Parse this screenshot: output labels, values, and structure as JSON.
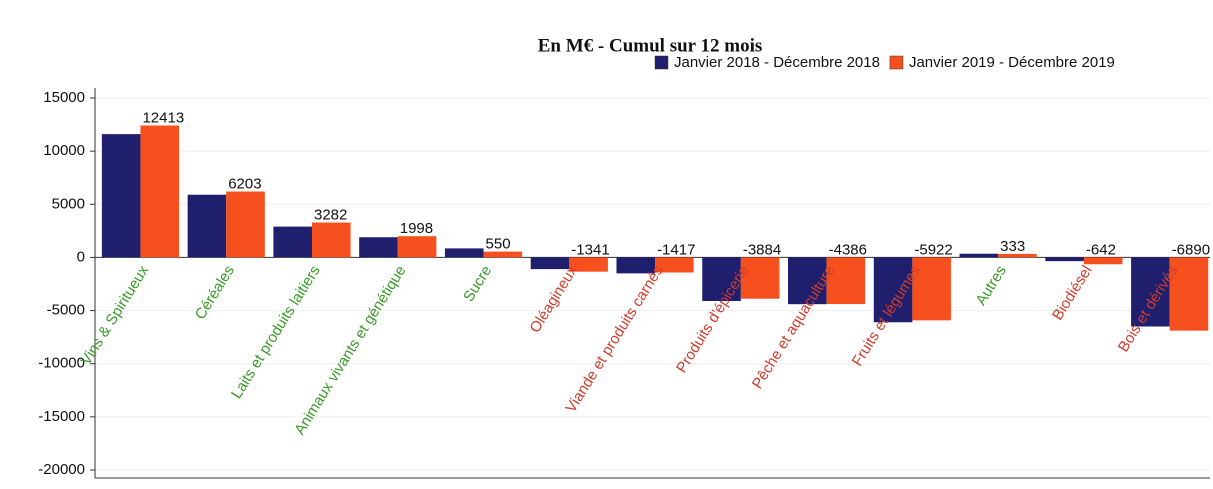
{
  "chart_data": {
    "type": "bar",
    "title": "En M€ - Cumul sur 12 mois",
    "categories": [
      "Vins & Spiritueux",
      "Céréales",
      "Laits et produits laitiers",
      "Animaux vivants et génétique",
      "Sucre",
      "Oléagineux",
      "Viande et produits carnés",
      "Produits d'épicerie",
      "Pêche et aquaculture",
      "Fruits et légumes",
      "Autres",
      "Biodiésel",
      "Bois et dérivés"
    ],
    "category_colors": [
      "#3a9a2a",
      "#3a9a2a",
      "#3a9a2a",
      "#3a9a2a",
      "#3a9a2a",
      "#d03c2c",
      "#d03c2c",
      "#d03c2c",
      "#d03c2c",
      "#d03c2c",
      "#3a9a2a",
      "#d03c2c",
      "#d03c2c"
    ],
    "series": [
      {
        "name": "Janvier 2018 - Décembre 2018",
        "color": "#1f1f6e",
        "show_labels": false,
        "values": [
          11600,
          5900,
          2900,
          1900,
          850,
          -1100,
          -1500,
          -4100,
          -4400,
          -6100,
          350,
          -350,
          -6500
        ]
      },
      {
        "name": "Janvier 2019 - Décembre 2019",
        "color": "#f5501e",
        "show_labels": true,
        "values": [
          12413,
          6203,
          3282,
          1998,
          550,
          -1341,
          -1417,
          -3884,
          -4386,
          -5922,
          333,
          -642,
          -6890
        ]
      }
    ],
    "ylim": [
      -20000,
      15000
    ],
    "yticks": [
      -20000,
      -15000,
      -10000,
      -5000,
      0,
      5000,
      10000,
      15000
    ],
    "grid": true,
    "legend": "top-right"
  }
}
